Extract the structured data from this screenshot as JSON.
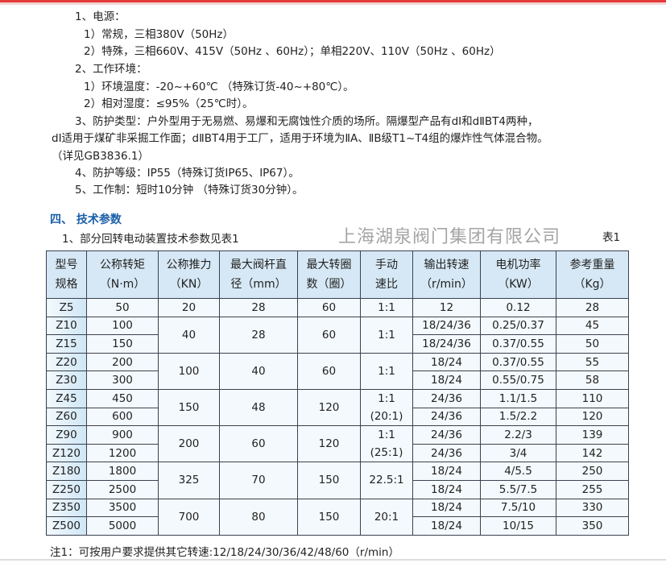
{
  "paragraphs": [
    "1、电源：",
    "1）常规，三相380V（50Hz）",
    "2）特殊，三相660V、415V（50Hz 、60Hz）；单相220V、110V（50Hz 、60Hz）",
    "2、工作环境：",
    "1）环境温度：-20~+60℃ （特殊订货-40~+80℃）。",
    "2）相对湿度：≤95%（25℃时）。",
    "3、防护类型：户外型用于无易燃、易爆和无腐蚀性介质的场所。隔爆型产品有dⅠ和dⅡBT4两种，",
    "dⅠ适用于煤矿非采掘工作面；dⅡBT4用于工厂，适用于环境为ⅡA、ⅡB级T1~T4组的爆炸性气体混合物。",
    "（详见GB3836.1）",
    "4、防护等级：IP55（特殊订货IP65、IP67）。",
    "5、工作制：短时10分钟 （特殊订货30分钟）。"
  ],
  "section_title": "四、 技术参数",
  "table_intro": "1、部分回转电动装置技术参数见表1",
  "table_label": "表1",
  "table": {
    "headers": [
      [
        "型号",
        "规格"
      ],
      [
        "公称转矩",
        "（N·m）"
      ],
      [
        "公称推力",
        "（KN）"
      ],
      [
        "最大阀杆直",
        "径（mm）"
      ],
      [
        "最大转圈",
        "数（圈）"
      ],
      [
        "手动",
        "速比"
      ],
      [
        "输出转速",
        "（r/min）"
      ],
      [
        "电机功率",
        "（KW）"
      ],
      [
        "参考重量",
        "（Kg）"
      ]
    ],
    "rows": [
      {
        "model": "Z5",
        "torque": "50",
        "speed": "12",
        "power": "0.12",
        "weight": "28"
      },
      {
        "model": "Z10",
        "torque": "100",
        "speed": "18/24/36",
        "power": "0.25/0.37",
        "weight": "45"
      },
      {
        "model": "Z15",
        "torque": "150",
        "speed": "18/24/36",
        "power": "0.37/0.55",
        "weight": "50"
      },
      {
        "model": "Z20",
        "torque": "200",
        "speed": "18/24",
        "power": "0.37/0.55",
        "weight": "55"
      },
      {
        "model": "Z30",
        "torque": "300",
        "speed": "18/24",
        "power": "0.55/0.75",
        "weight": "58"
      },
      {
        "model": "Z45",
        "torque": "450",
        "speed": "24/36",
        "power": "1.1/1.5",
        "weight": "110"
      },
      {
        "model": "Z60",
        "torque": "600",
        "speed": "24/36",
        "power": "1.5/2.2",
        "weight": "120"
      },
      {
        "model": "Z90",
        "torque": "900",
        "speed": "24/36",
        "power": "2.2/3",
        "weight": "139"
      },
      {
        "model": "Z120",
        "torque": "1200",
        "speed": "24/36",
        "power": "3/4",
        "weight": "142"
      },
      {
        "model": "Z180",
        "torque": "1800",
        "speed": "18/24",
        "power": "4/5.5",
        "weight": "250"
      },
      {
        "model": "Z250",
        "torque": "2500",
        "speed": "18/24",
        "power": "5.5/7.5",
        "weight": "255"
      },
      {
        "model": "Z350",
        "torque": "3500",
        "speed": "18/24",
        "power": "7.5/10",
        "weight": "330"
      },
      {
        "model": "Z500",
        "torque": "5000",
        "speed": "18/24",
        "power": "10/15",
        "weight": "350"
      }
    ],
    "groups": [
      {
        "thrust": "20",
        "diameter": "28",
        "turns": "60",
        "ratio": "1:1",
        "ratio2": ""
      },
      {
        "thrust": "40",
        "diameter": "28",
        "turns": "60",
        "ratio": "1:1",
        "ratio2": ""
      },
      {
        "thrust": "100",
        "diameter": "40",
        "turns": "60",
        "ratio": "1:1",
        "ratio2": ""
      },
      {
        "thrust": "150",
        "diameter": "48",
        "turns": "120",
        "ratio": "1:1",
        "ratio2": "(20:1)"
      },
      {
        "thrust": "200",
        "diameter": "60",
        "turns": "120",
        "ratio": "1:1",
        "ratio2": "(25:1)"
      },
      {
        "thrust": "325",
        "diameter": "70",
        "turns": "150",
        "ratio": "22.5:1",
        "ratio2": ""
      },
      {
        "thrust": "700",
        "diameter": "80",
        "turns": "150",
        "ratio": "20:1",
        "ratio2": ""
      }
    ]
  },
  "watermark": "上海湖泉阀门集团有限公司",
  "note": "注1：可按用户要求提供其它转速:12/18/24/30/36/42/48/60（r/min）",
  "colors": {
    "section_title": "#1a5fa8",
    "header_bg": "#d6e8f5",
    "top_rule": "#e23a3a"
  }
}
